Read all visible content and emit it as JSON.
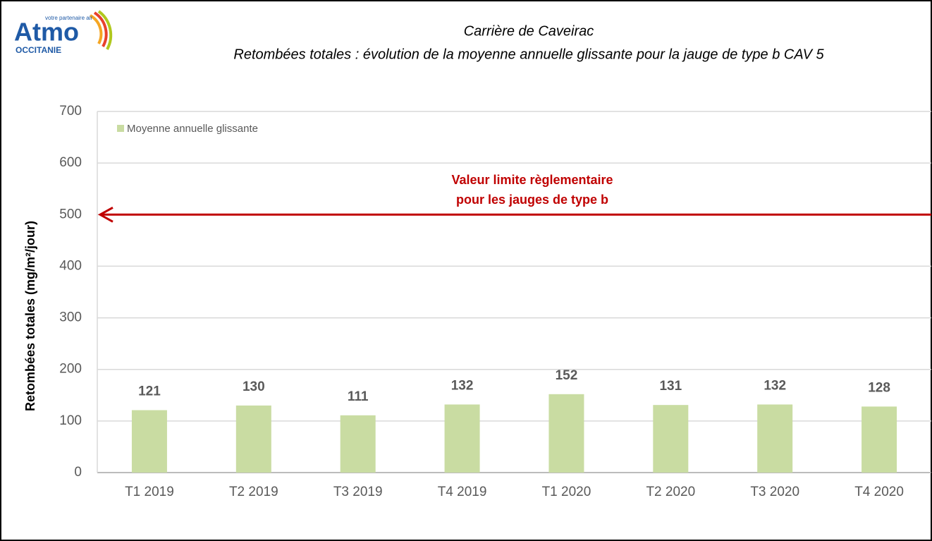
{
  "logo": {
    "name": "Atmo",
    "tagline": "votre partenaire air",
    "region": "OCCITANIE"
  },
  "chart_data": {
    "type": "bar",
    "title": "Carrière de Caveirac",
    "subtitle": "Retombées totales : évolution de la moyenne annuelle glissante pour la jauge de type b  CAV 5",
    "y_label": "Retombées totales (mg/m²/jour)",
    "categories": [
      "T1 2019",
      "T2 2019",
      "T3 2019",
      "T4 2019",
      "T1 2020",
      "T2 2020",
      "T3 2020",
      "T4 2020"
    ],
    "series": [
      {
        "name": "Moyenne annuelle glissante",
        "color": "#c9dca2",
        "values": [
          121,
          130,
          111,
          132,
          152,
          131,
          132,
          128
        ]
      }
    ],
    "ylim": [
      0,
      700
    ],
    "yticks": [
      0,
      100,
      200,
      300,
      400,
      500,
      600,
      700
    ],
    "grid": true,
    "legend": "top-left",
    "limit": {
      "value": 500,
      "color": "#c00000",
      "label": [
        "Valeur limite règlementaire",
        "pour les jauges de type b"
      ]
    }
  }
}
